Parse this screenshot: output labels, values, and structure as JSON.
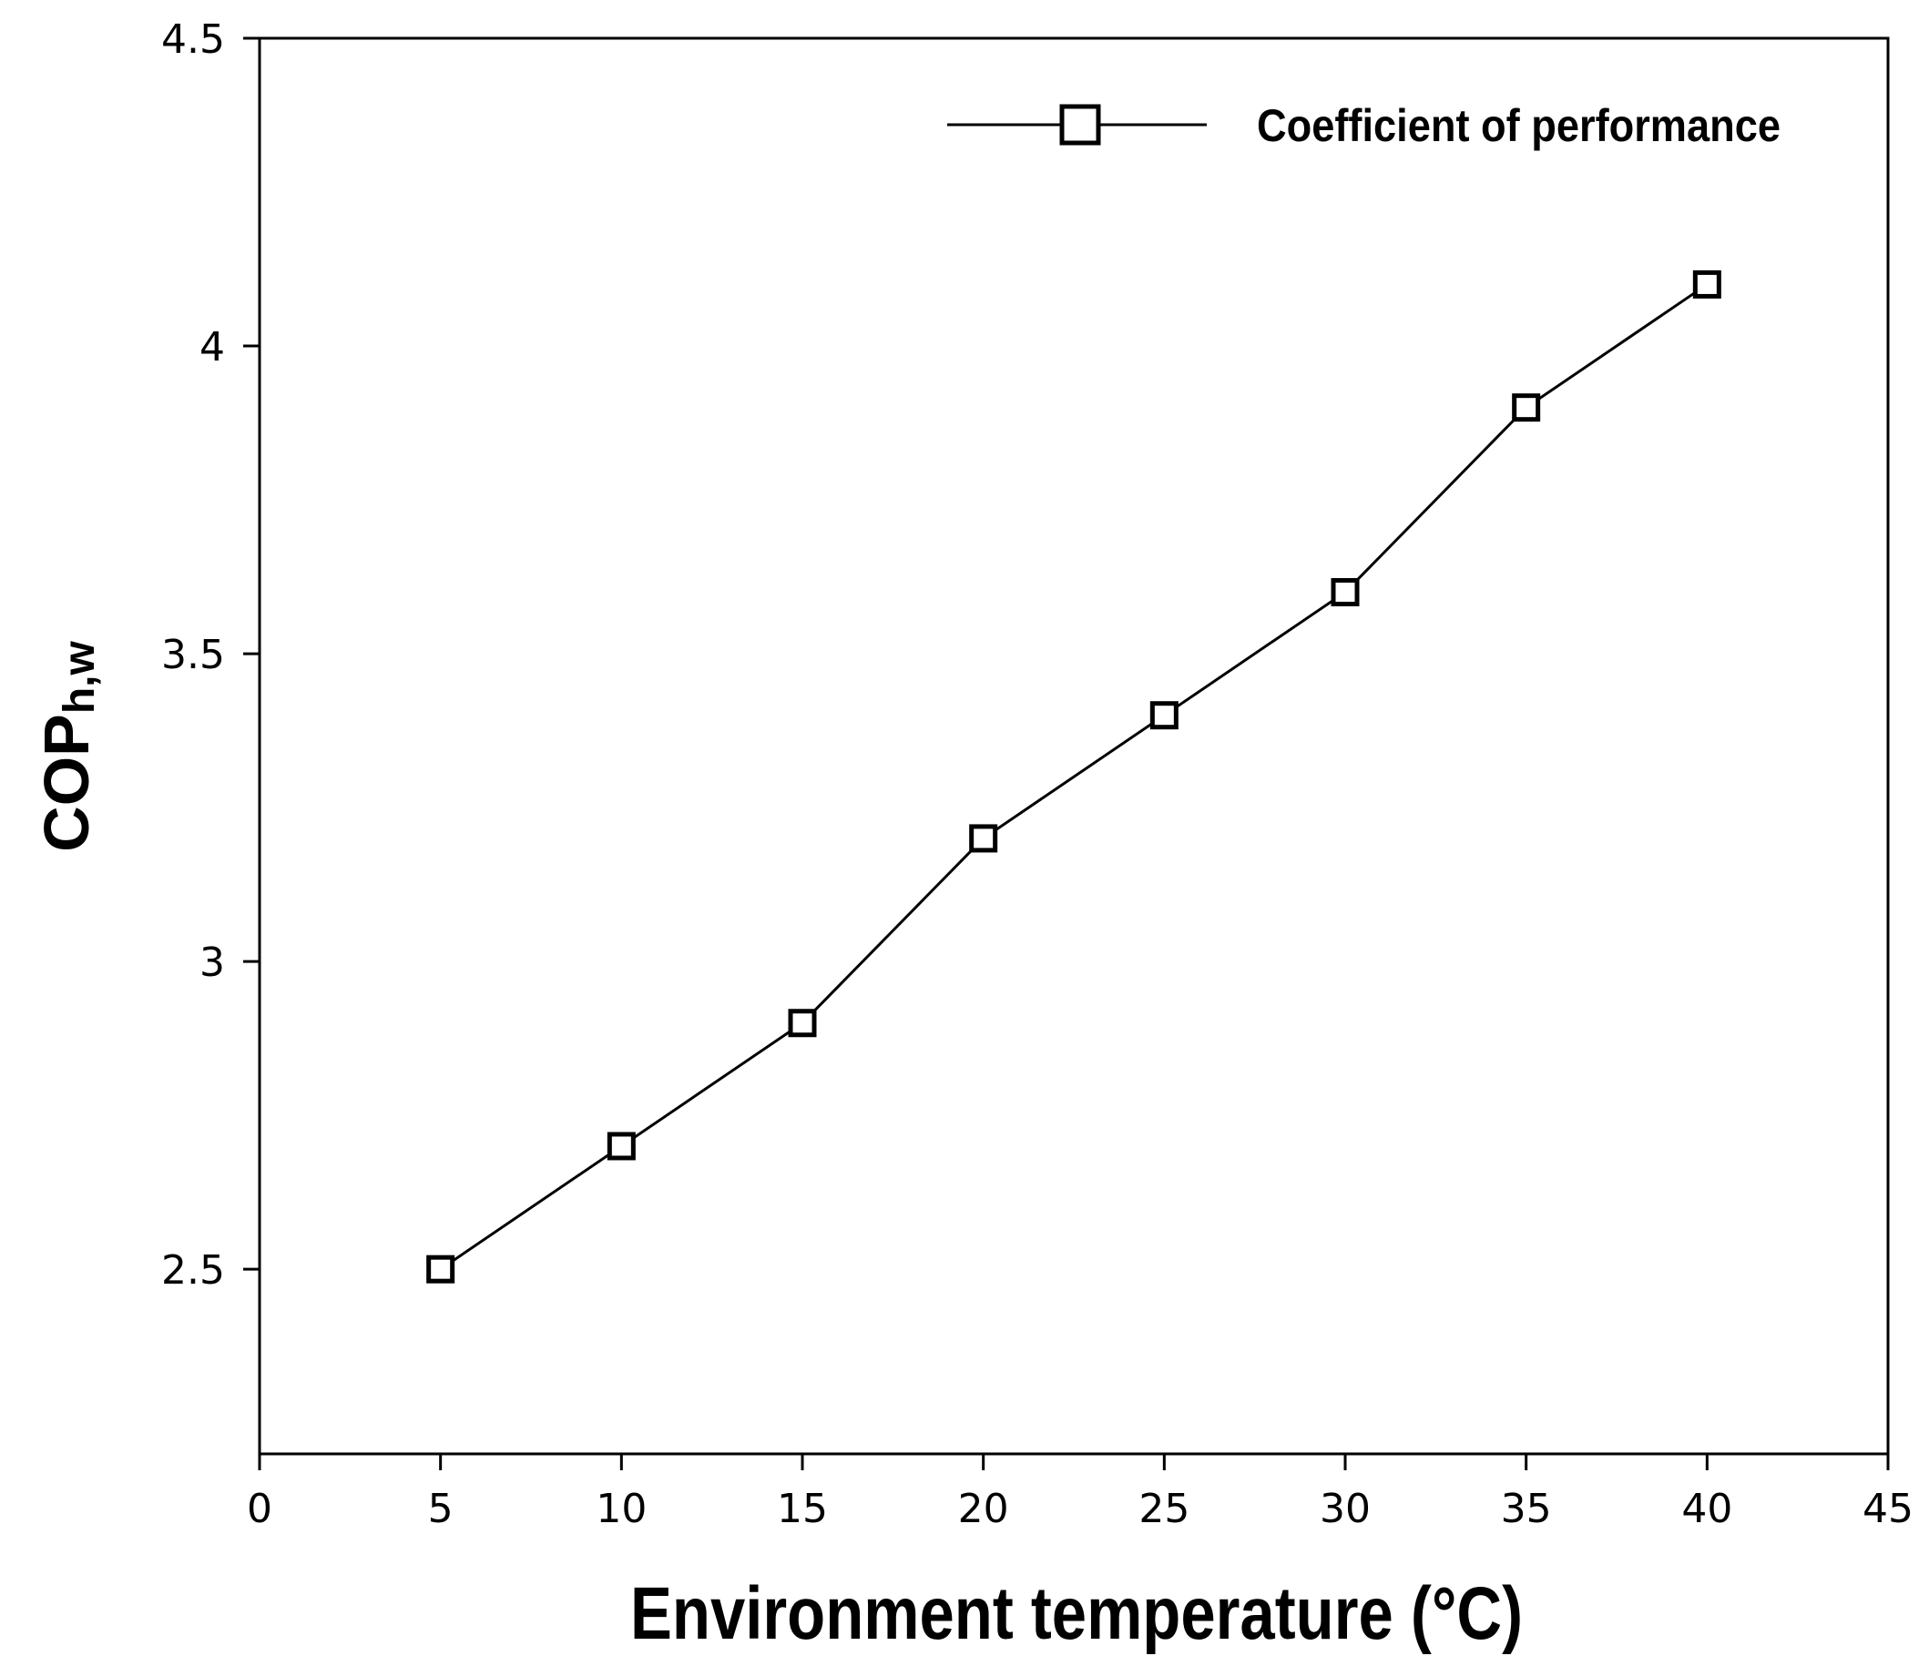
{
  "chart_data": {
    "type": "line",
    "title": "",
    "xlabel": "Environment temperature (°C)",
    "ylabel_main": "COP",
    "ylabel_sub": "h,w",
    "xlim": [
      0,
      45
    ],
    "ylim": [
      2.2,
      4.5
    ],
    "xticks": [
      0,
      5,
      10,
      15,
      20,
      25,
      30,
      35,
      40,
      45
    ],
    "yticks": [
      2.5,
      3,
      3.5,
      4,
      4.5
    ],
    "grid": false,
    "legend_position": "top-right",
    "series": [
      {
        "name": "Coefficient of performance",
        "marker": "square",
        "x": [
          5,
          10,
          15,
          20,
          25,
          30,
          35,
          40
        ],
        "values": [
          2.5,
          2.7,
          2.9,
          3.2,
          3.4,
          3.6,
          3.9,
          4.1
        ]
      }
    ]
  }
}
